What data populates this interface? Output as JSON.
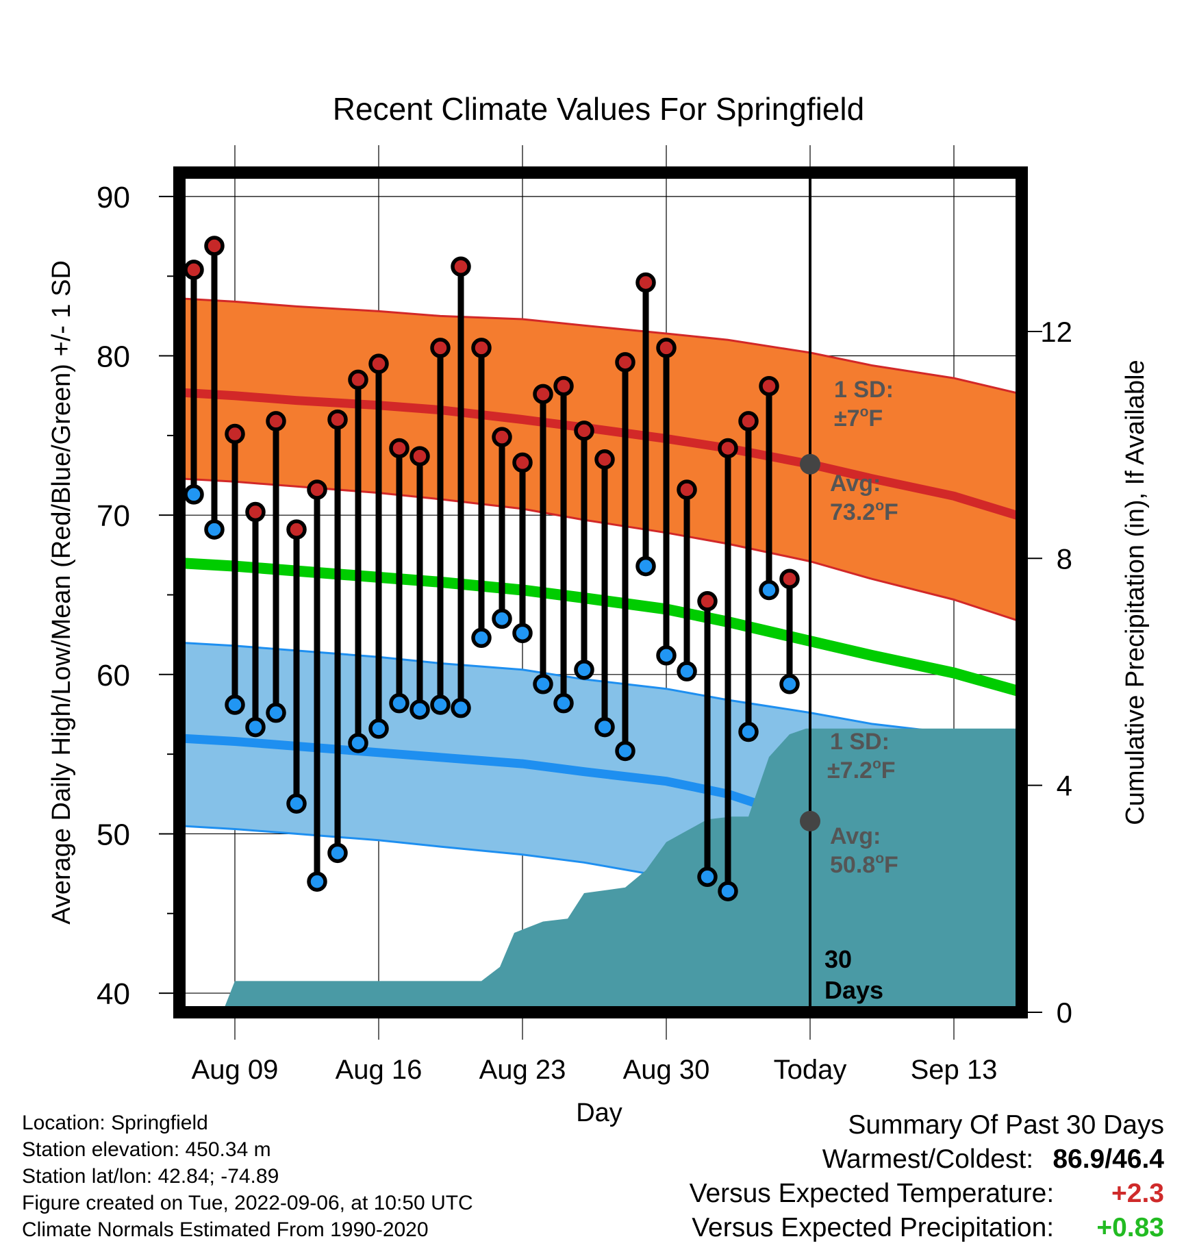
{
  "colors": {
    "high_band": "#f47c2f",
    "high_line": "#d22828",
    "low_band": "#85c1e8",
    "low_line": "#1e8ff0",
    "mean_line": "#00cc00",
    "precip_fill": "#4a9aa5",
    "high_dot": "#c62828",
    "low_dot": "#2196f3",
    "avg_marker": "#444444",
    "annotation": "#555555"
  },
  "chart_data": {
    "type": "line",
    "title": "Recent Climate Values For Springfield",
    "xlabel": "Day",
    "ylabel": "Average Daily High/Low/Mean (Red/Blue/Green) +/- 1 SD",
    "y2label": "Cumulative Precipitation (in), If Available",
    "ylim": [
      38.8,
      91.5
    ],
    "y2lim": [
      0,
      14.8
    ],
    "xlim": [
      -2.7,
      38.3
    ],
    "yticks": [
      40,
      50,
      60,
      70,
      80,
      90
    ],
    "y2ticks": [
      0,
      4,
      8,
      12
    ],
    "xticks": [
      {
        "x": 0,
        "label": "Aug 09"
      },
      {
        "x": 7,
        "label": "Aug 16"
      },
      {
        "x": 14,
        "label": "Aug 23"
      },
      {
        "x": 21,
        "label": "Aug 30"
      },
      {
        "x": 28,
        "label": "Today"
      },
      {
        "x": 35,
        "label": "Sep 13"
      }
    ],
    "grid": true,
    "today_x": 28,
    "daily": {
      "x": [
        -2,
        -1,
        0,
        1,
        2,
        3,
        4,
        5,
        6,
        7,
        8,
        9,
        10,
        11,
        12,
        13,
        14,
        15,
        16,
        17,
        18,
        19,
        20,
        21,
        22,
        23,
        24,
        25,
        26,
        27
      ],
      "high": [
        85.4,
        86.9,
        75.1,
        70.2,
        75.9,
        69.1,
        71.6,
        76.0,
        78.5,
        79.5,
        74.2,
        73.7,
        80.5,
        85.6,
        80.5,
        74.9,
        73.3,
        77.6,
        78.1,
        75.3,
        73.5,
        79.6,
        84.6,
        80.5,
        71.6,
        64.6,
        74.2,
        75.9,
        78.1,
        66.0
      ],
      "low": [
        71.3,
        69.1,
        58.1,
        56.7,
        57.6,
        51.9,
        47.0,
        48.8,
        55.7,
        56.6,
        58.2,
        57.8,
        58.1,
        57.9,
        62.3,
        63.5,
        62.6,
        59.4,
        58.2,
        60.3,
        56.7,
        55.2,
        66.8,
        61.2,
        60.2,
        47.3,
        46.4,
        56.4,
        65.3,
        59.4
      ]
    },
    "normals": {
      "x": [
        -2.7,
        0,
        3,
        7,
        10,
        14,
        17,
        21,
        24,
        28,
        31,
        35,
        38.3
      ],
      "high_mean": [
        77.7,
        77.5,
        77.2,
        76.9,
        76.6,
        76.0,
        75.5,
        74.8,
        74.2,
        73.2,
        72.3,
        71.2,
        69.9
      ],
      "high_sd_upper": [
        83.6,
        83.4,
        83.1,
        82.8,
        82.5,
        82.3,
        81.9,
        81.4,
        81.0,
        80.2,
        79.4,
        78.6,
        77.6
      ],
      "high_sd_lower": [
        72.3,
        72.1,
        71.8,
        71.4,
        71.0,
        70.4,
        69.7,
        68.9,
        68.2,
        67.1,
        66.0,
        64.7,
        63.3
      ],
      "mean": [
        67.0,
        66.8,
        66.5,
        66.1,
        65.8,
        65.3,
        64.8,
        64.1,
        63.3,
        62.1,
        61.2,
        60.1,
        58.9
      ],
      "low_mean": [
        56.0,
        55.8,
        55.5,
        55.1,
        54.8,
        54.4,
        53.9,
        53.3,
        52.5,
        50.8,
        50.0,
        49.4,
        48.8
      ],
      "low_sd_upper": [
        62.0,
        61.8,
        61.5,
        61.1,
        60.7,
        60.3,
        59.7,
        59.1,
        58.4,
        57.6,
        56.9,
        56.3,
        55.6
      ],
      "low_sd_lower": [
        50.5,
        50.3,
        50.0,
        49.6,
        49.2,
        48.7,
        48.2,
        47.3,
        46.2,
        44.8,
        43.7,
        42.5,
        41.2
      ]
    },
    "precip": {
      "x": [
        -0.6,
        0,
        12.0,
        12.9,
        13.6,
        15.0,
        16.2,
        17.0,
        19.0,
        20.0,
        21.0,
        22.0,
        23.0,
        24.2,
        25.0,
        26.0,
        27.0,
        27.8,
        38.3
      ],
      "cumulative": [
        0.0,
        0.55,
        0.55,
        0.8,
        1.4,
        1.6,
        1.65,
        2.1,
        2.2,
        2.5,
        3.0,
        3.2,
        3.4,
        3.45,
        3.45,
        4.5,
        4.9,
        5.0,
        5.0
      ]
    },
    "annotations": {
      "high_sd_title": "1 SD:",
      "high_sd_value": "±7",
      "high_avg_title": "Avg:",
      "high_avg_value": "73.2",
      "low_sd_title": "1 SD:",
      "low_sd_value": "±7.2",
      "low_avg_title": "Avg:",
      "low_avg_value": "50.8",
      "unit": "F",
      "degree": "o",
      "days_number": "30",
      "days_word": "Days"
    }
  },
  "footer": {
    "location": "Location: Springfield",
    "elevation": "Station elevation: 450.34 m",
    "latlon": "Station lat/lon: 42.84; -74.89",
    "created": "Figure created on Tue, 2022-09-06, at 10:50 UTC",
    "normals": "Climate Normals Estimated From 1990-2020"
  },
  "summary": {
    "title": "Summary Of Past 30 Days",
    "warm_cold_label": "Warmest/Coldest:",
    "warm_cold_value": "86.9/46.4",
    "temp_label": "Versus Expected Temperature:",
    "temp_value": "+2.3",
    "precip_label": "Versus Expected Precipitation:",
    "precip_value": "+0.83"
  }
}
